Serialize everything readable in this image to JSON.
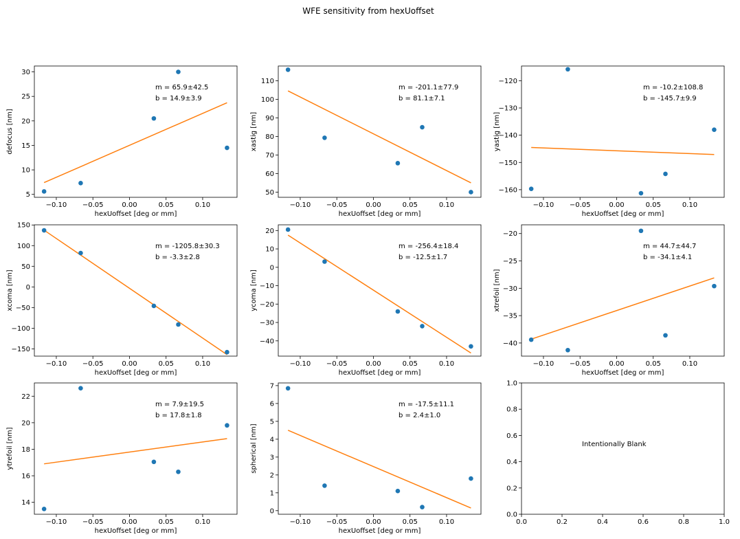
{
  "figure": {
    "title": "WFE sensitivity from hexUoffset",
    "colors": {
      "points": "#1f77b4",
      "fit": "#ff7f0e",
      "axes": "#000000",
      "background": "#ffffff"
    }
  },
  "chart_data": [
    {
      "type": "scatter",
      "xlabel": "hexUoffset [deg or mm]",
      "ylabel": "defocus [nm]",
      "xlim": [
        -0.13,
        0.147
      ],
      "ylim": [
        4.4,
        31.2
      ],
      "xticks": [
        -0.1,
        -0.05,
        0.0,
        0.05,
        0.1
      ],
      "xtick_labels": [
        "−0.10",
        "−0.05",
        "0.00",
        "0.05",
        "0.10"
      ],
      "yticks": [
        5,
        10,
        15,
        20,
        25,
        30
      ],
      "ytick_labels": [
        "5",
        "10",
        "15",
        "20",
        "25",
        "30"
      ],
      "points": {
        "x": [
          -0.1167,
          -0.0667,
          0.0333,
          0.0667,
          0.1333
        ],
        "y": [
          5.6,
          7.3,
          20.5,
          30.0,
          14.5
        ]
      },
      "fit": {
        "x": [
          -0.1167,
          0.1333
        ],
        "y": [
          7.4,
          23.7
        ]
      },
      "annotation": {
        "lines": [
          "m = 65.9±42.5",
          "b = 14.9±3.9"
        ]
      }
    },
    {
      "type": "scatter",
      "xlabel": "hexUoffset [deg or mm]",
      "ylabel": "xastig [nm]",
      "xlim": [
        -0.13,
        0.147
      ],
      "ylim": [
        47.2,
        118.0
      ],
      "xticks": [
        -0.1,
        -0.05,
        0.0,
        0.05,
        0.1
      ],
      "xtick_labels": [
        "−0.10",
        "−0.05",
        "0.00",
        "0.05",
        "0.10"
      ],
      "yticks": [
        50,
        60,
        70,
        80,
        90,
        100,
        110
      ],
      "ytick_labels": [
        "50",
        "60",
        "70",
        "80",
        "90",
        "100",
        "110"
      ],
      "points": {
        "x": [
          -0.1167,
          -0.0667,
          0.0333,
          0.0667,
          0.1333
        ],
        "y": [
          116.0,
          79.3,
          65.6,
          85.0,
          50.0
        ]
      },
      "fit": {
        "x": [
          -0.1167,
          0.1333
        ],
        "y": [
          104.6,
          55.0
        ]
      },
      "annotation": {
        "lines": [
          "m = -201.1±77.9",
          "b = 81.1±7.1"
        ]
      }
    },
    {
      "type": "scatter",
      "xlabel": "hexUoffset [deg or mm]",
      "ylabel": "yastig [nm]",
      "xlim": [
        -0.13,
        0.147
      ],
      "ylim": [
        -162.8,
        -114.6
      ],
      "xticks": [
        -0.1,
        -0.05,
        0.0,
        0.05,
        0.1
      ],
      "xtick_labels": [
        "−0.10",
        "−0.05",
        "0.00",
        "0.05",
        "0.10"
      ],
      "yticks": [
        -160,
        -150,
        -140,
        -130,
        -120
      ],
      "ytick_labels": [
        "−160",
        "−150",
        "−140",
        "−130",
        "−120"
      ],
      "points": {
        "x": [
          -0.1167,
          -0.0667,
          0.0333,
          0.0667,
          0.1333
        ],
        "y": [
          -159.7,
          -115.8,
          -161.3,
          -154.2,
          -138.0
        ]
      },
      "fit": {
        "x": [
          -0.1167,
          0.1333
        ],
        "y": [
          -144.5,
          -147.1
        ]
      },
      "annotation": {
        "lines": [
          "m = -10.2±108.8",
          "b = -145.7±9.9"
        ]
      }
    },
    {
      "type": "scatter",
      "xlabel": "hexUoffset [deg or mm]",
      "ylabel": "xcoma [nm]",
      "xlim": [
        -0.13,
        0.147
      ],
      "ylim": [
        -167.6,
        150.4
      ],
      "xticks": [
        -0.1,
        -0.05,
        0.0,
        0.05,
        0.1
      ],
      "xtick_labels": [
        "−0.10",
        "−0.05",
        "0.00",
        "0.05",
        "0.10"
      ],
      "yticks": [
        -150,
        -100,
        -50,
        0,
        50,
        100,
        150
      ],
      "ytick_labels": [
        "−150",
        "−100",
        "−50",
        "0",
        "50",
        "100",
        "150"
      ],
      "points": {
        "x": [
          -0.1167,
          -0.0667,
          0.0333,
          0.0667,
          0.1333
        ],
        "y": [
          137.0,
          82.0,
          -46.0,
          -91.0,
          -158.0
        ]
      },
      "fit": {
        "x": [
          -0.1167,
          0.1333
        ],
        "y": [
          137.4,
          -164.0
        ]
      },
      "annotation": {
        "lines": [
          "m = -1205.8±30.3",
          "b = -3.3±2.8"
        ]
      }
    },
    {
      "type": "scatter",
      "xlabel": "hexUoffset [deg or mm]",
      "ylabel": "ycoma [nm]",
      "xlim": [
        -0.13,
        0.147
      ],
      "ylim": [
        -48.3,
        23.1
      ],
      "xticks": [
        -0.1,
        -0.05,
        0.0,
        0.05,
        0.1
      ],
      "xtick_labels": [
        "−0.10",
        "−0.05",
        "0.00",
        "0.05",
        "0.10"
      ],
      "yticks": [
        -40,
        -30,
        -20,
        -10,
        0,
        10,
        20
      ],
      "ytick_labels": [
        "−40",
        "−30",
        "−20",
        "−10",
        "0",
        "10",
        "20"
      ],
      "points": {
        "x": [
          -0.1167,
          -0.0667,
          0.0333,
          0.0667,
          0.1333
        ],
        "y": [
          20.5,
          3.1,
          -24.0,
          -32.0,
          -43.0
        ]
      },
      "fit": {
        "x": [
          -0.1167,
          0.1333
        ],
        "y": [
          17.5,
          -46.6
        ]
      },
      "annotation": {
        "lines": [
          "m = -256.4±18.4",
          "b = -12.5±1.7"
        ]
      }
    },
    {
      "type": "scatter",
      "xlabel": "hexUoffset [deg or mm]",
      "ylabel": "xtrefoil [nm]",
      "xlim": [
        -0.13,
        0.147
      ],
      "ylim": [
        -42.4,
        -18.4
      ],
      "xticks": [
        -0.1,
        -0.05,
        0.0,
        0.05,
        0.1
      ],
      "xtick_labels": [
        "−0.10",
        "−0.05",
        "0.00",
        "0.05",
        "0.10"
      ],
      "yticks": [
        -40,
        -35,
        -30,
        -25,
        -20
      ],
      "ytick_labels": [
        "−40",
        "−35",
        "−30",
        "−25",
        "−20"
      ],
      "points": {
        "x": [
          -0.1167,
          -0.0667,
          0.0333,
          0.0667,
          0.1333
        ],
        "y": [
          -39.4,
          -41.3,
          -19.5,
          -38.6,
          -29.6
        ]
      },
      "fit": {
        "x": [
          -0.1167,
          0.1333
        ],
        "y": [
          -39.3,
          -28.1
        ]
      },
      "annotation": {
        "lines": [
          "m = 44.7±44.7",
          "b = -34.1±4.1"
        ]
      }
    },
    {
      "type": "scatter",
      "xlabel": "hexUoffset [deg or mm]",
      "ylabel": "ytrefoil [nm]",
      "xlim": [
        -0.13,
        0.147
      ],
      "ylim": [
        13.1,
        23.0
      ],
      "xticks": [
        -0.1,
        -0.05,
        0.0,
        0.05,
        0.1
      ],
      "xtick_labels": [
        "−0.10",
        "−0.05",
        "0.00",
        "0.05",
        "0.10"
      ],
      "yticks": [
        14,
        16,
        18,
        20,
        22
      ],
      "ytick_labels": [
        "14",
        "16",
        "18",
        "20",
        "22"
      ],
      "points": {
        "x": [
          -0.1167,
          -0.0667,
          0.0333,
          0.0667,
          0.1333
        ],
        "y": [
          13.5,
          22.6,
          17.05,
          16.3,
          19.8
        ]
      },
      "fit": {
        "x": [
          -0.1167,
          0.1333
        ],
        "y": [
          16.9,
          18.8
        ]
      },
      "annotation": {
        "lines": [
          "m = 7.9±19.5",
          "b = 17.8±1.8"
        ]
      }
    },
    {
      "type": "scatter",
      "xlabel": "hexUoffset [deg or mm]",
      "ylabel": "spherical [nm]",
      "xlim": [
        -0.13,
        0.147
      ],
      "ylim": [
        -0.2,
        7.15
      ],
      "xticks": [
        -0.1,
        -0.05,
        0.0,
        0.05,
        0.1
      ],
      "xtick_labels": [
        "−0.10",
        "−0.05",
        "0.00",
        "0.05",
        "0.10"
      ],
      "yticks": [
        0,
        1,
        2,
        3,
        4,
        5,
        6,
        7
      ],
      "ytick_labels": [
        "0",
        "1",
        "2",
        "3",
        "4",
        "5",
        "6",
        "7"
      ],
      "points": {
        "x": [
          -0.1167,
          -0.0667,
          0.0333,
          0.0667,
          0.1333
        ],
        "y": [
          6.85,
          1.4,
          1.1,
          0.2,
          1.8
        ]
      },
      "fit": {
        "x": [
          -0.1167,
          0.1333
        ],
        "y": [
          4.5,
          0.15
        ]
      },
      "annotation": {
        "lines": [
          "m = -17.5±11.1",
          "b = 2.4±1.0"
        ]
      }
    },
    {
      "type": "scatter",
      "xlabel": "",
      "ylabel": "",
      "xlim": [
        0,
        1
      ],
      "ylim": [
        0,
        1
      ],
      "xticks": [
        0,
        0.2,
        0.4,
        0.6,
        0.8,
        1.0
      ],
      "xtick_labels": [
        "0.0",
        "0.2",
        "0.4",
        "0.6",
        "0.8",
        "1.0"
      ],
      "yticks": [
        0,
        0.2,
        0.4,
        0.6,
        0.8,
        1.0
      ],
      "ytick_labels": [
        "0.0",
        "0.2",
        "0.4",
        "0.6",
        "0.8",
        "1.0"
      ],
      "points": {
        "x": [],
        "y": []
      },
      "fit": {
        "x": [],
        "y": []
      },
      "annotation": {
        "lines": [
          "Intentionally Blank"
        ]
      }
    }
  ]
}
